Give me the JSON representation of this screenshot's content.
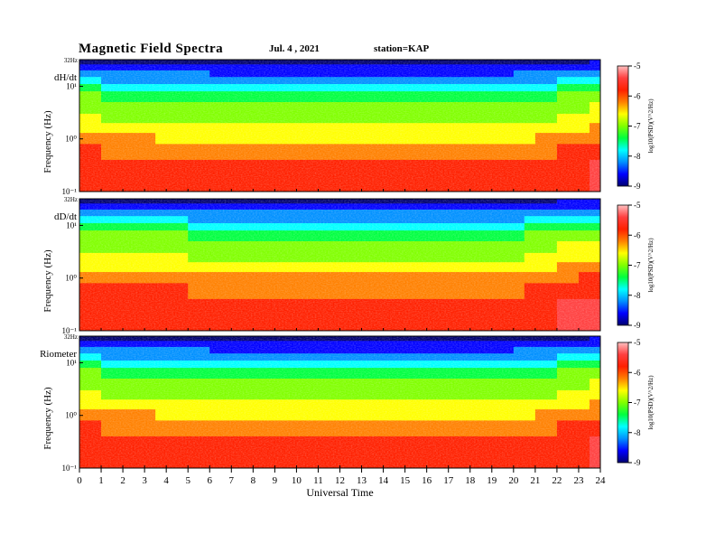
{
  "header": {
    "title": "Magnetic  Field  Spectra",
    "date": "Jul.  4  , 2021",
    "station": "station=KAP"
  },
  "colorbar": {
    "ticks": [
      "-5",
      "-6",
      "-7",
      "-8",
      "-9"
    ],
    "label": "log10(PSD)(V^2/Hz)",
    "colors": [
      "#000070",
      "#0000ff",
      "#0090ff",
      "#00ffff",
      "#00ff40",
      "#80ff00",
      "#ffff00",
      "#ff8000",
      "#ff2000",
      "#ff4040",
      "#ffc0c0"
    ]
  },
  "chart_data": [
    {
      "type": "heatmap",
      "panel_label": "dH/dt",
      "ylabel": "Frequency  (Hz)",
      "top_label": "32Hz",
      "yticks": [
        "10¹",
        "10⁰",
        "10⁻¹"
      ],
      "ylim_hz": [
        0.1,
        32
      ],
      "zlim_log10_psd": [
        -9,
        -5
      ],
      "xlim_hours": [
        0,
        24
      ]
    },
    {
      "type": "heatmap",
      "panel_label": "dD/dt",
      "ylabel": "Frequency  (Hz)",
      "top_label": "32Hz",
      "yticks": [
        "10¹",
        "10⁰",
        "10⁻¹"
      ],
      "ylim_hz": [
        0.1,
        32
      ],
      "zlim_log10_psd": [
        -9,
        -5
      ],
      "xlim_hours": [
        0,
        24
      ]
    },
    {
      "type": "heatmap",
      "panel_label": "Riometer",
      "ylabel": "Frequency  (Hz)",
      "top_label": "32Hz",
      "yticks": [
        "10¹",
        "10⁰",
        "10⁻¹"
      ],
      "ylim_hz": [
        0.1,
        32
      ],
      "zlim_log10_psd": [
        -9,
        -5
      ],
      "xlim_hours": [
        0,
        24
      ]
    }
  ],
  "xaxis": {
    "label": "Universal Time",
    "ticks": [
      "0",
      "1",
      "2",
      "3",
      "4",
      "5",
      "6",
      "7",
      "8",
      "9",
      "10",
      "11",
      "12",
      "13",
      "14",
      "15",
      "16",
      "17",
      "18",
      "19",
      "20",
      "21",
      "22",
      "23",
      "24"
    ]
  }
}
